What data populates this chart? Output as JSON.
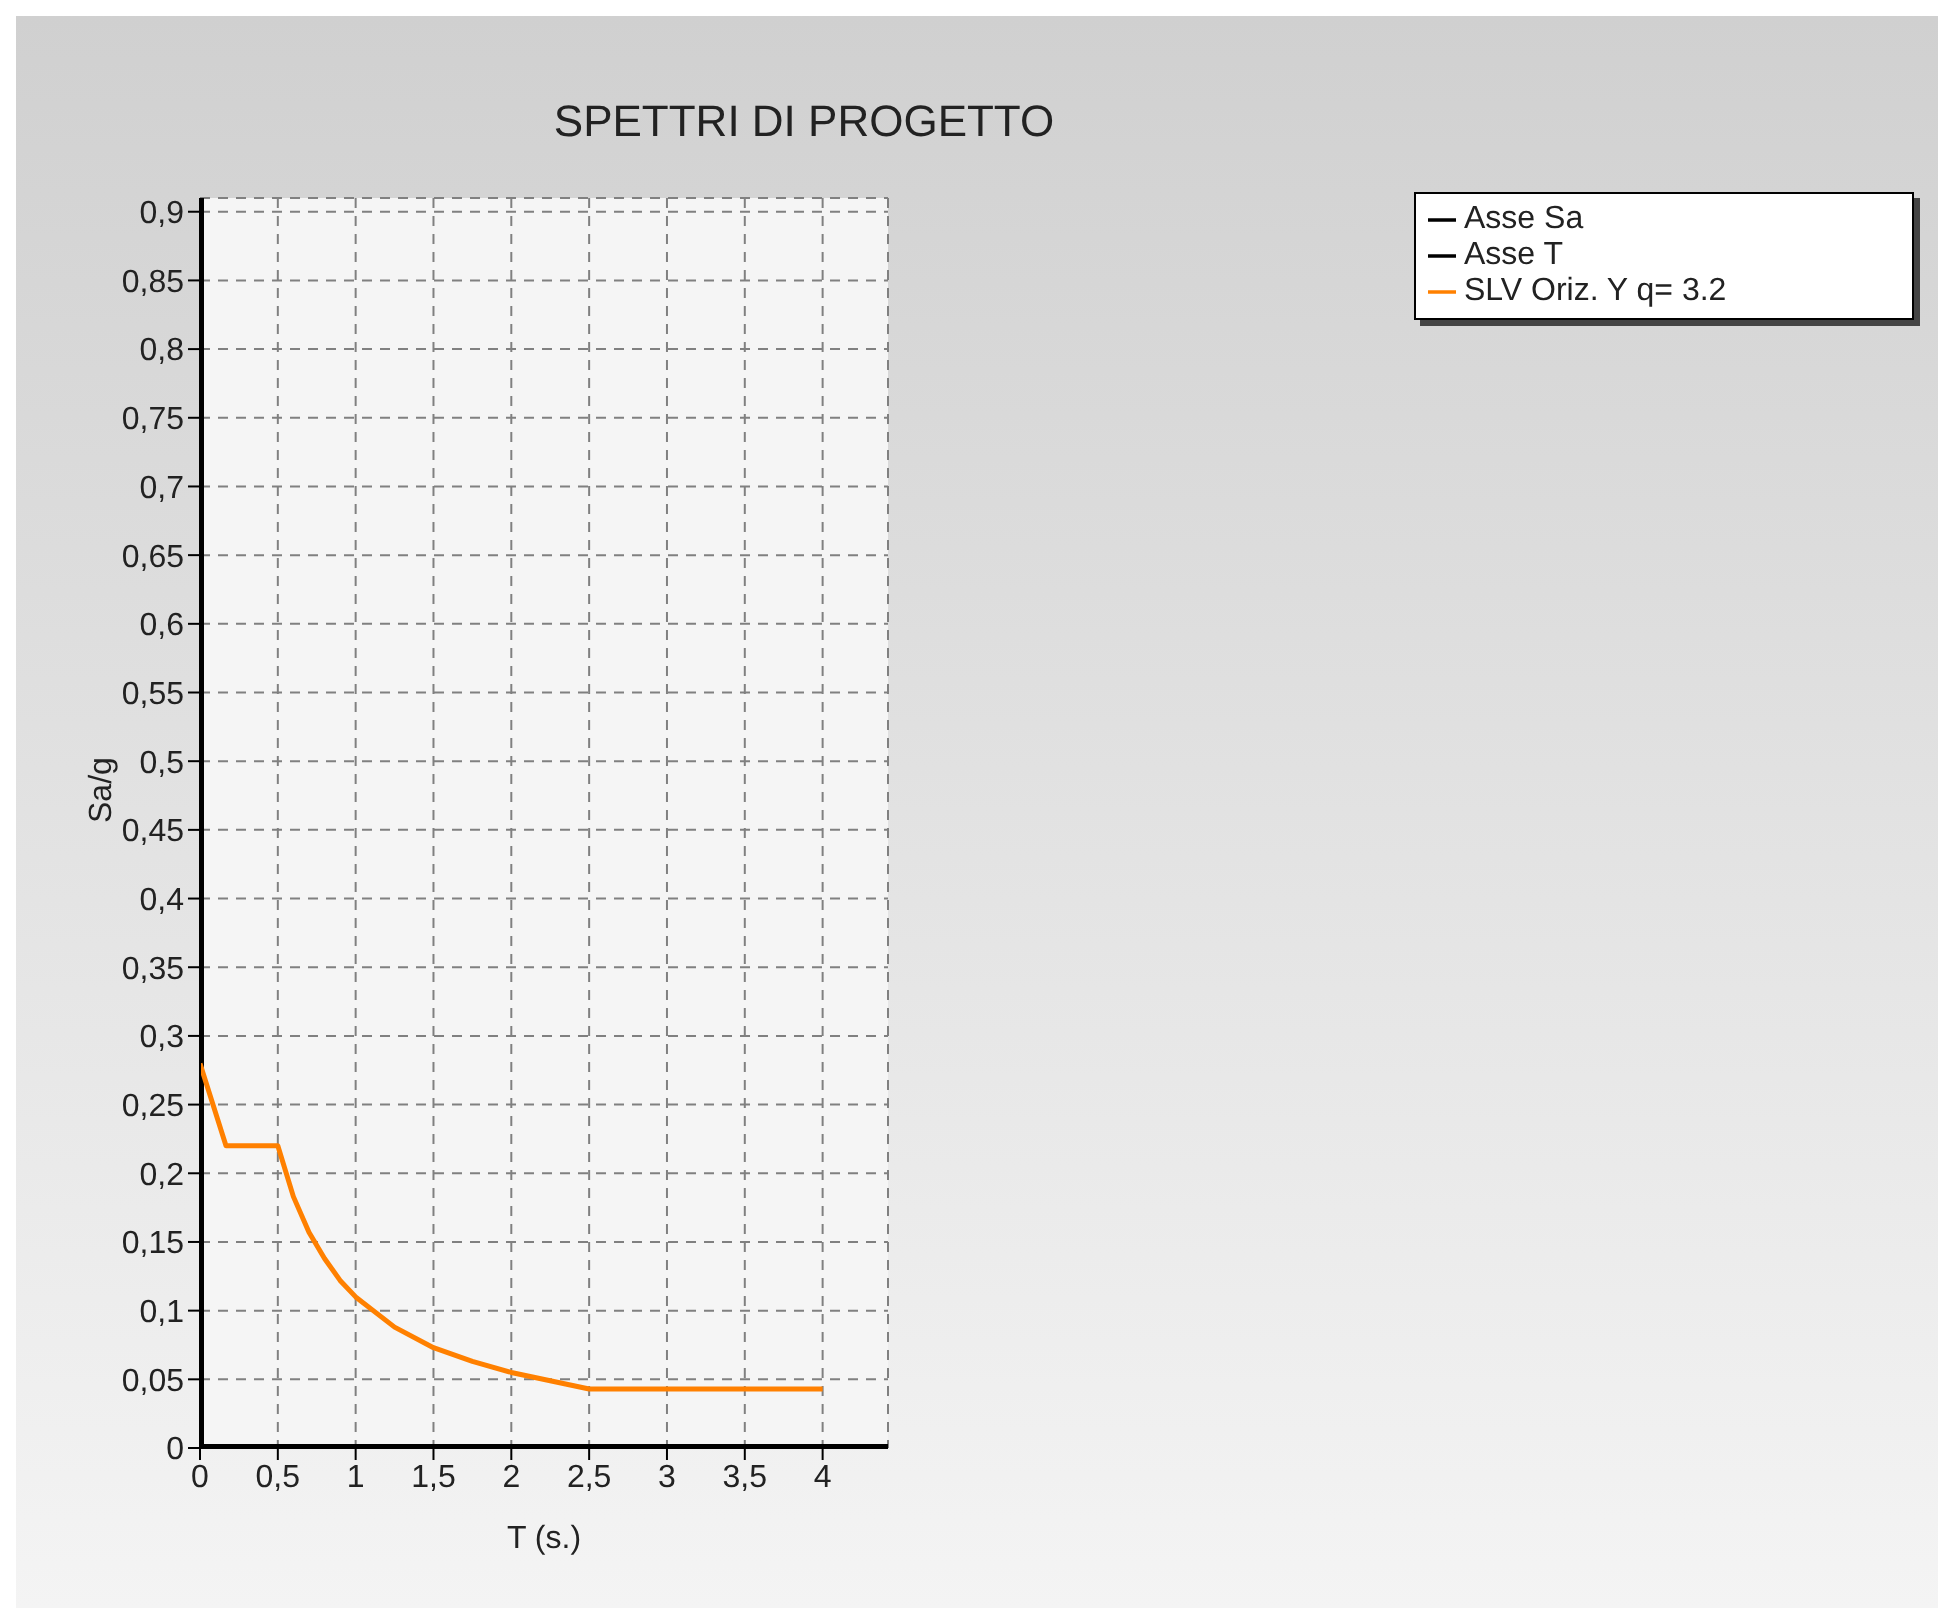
{
  "chart_data": {
    "type": "line",
    "title": "SPETTRI DI PROGETTO",
    "xlabel": "T (s.)",
    "ylabel": "Sa/g",
    "xlim": [
      0,
      4.42
    ],
    "ylim": [
      0,
      0.91
    ],
    "xticks": [
      0,
      {
        "value": 0.5,
        "label": "0,5"
      },
      1,
      {
        "value": 1.5,
        "label": "1,5"
      },
      2,
      {
        "value": 2.5,
        "label": "2,5"
      },
      3,
      {
        "value": 3.5,
        "label": "3,5"
      },
      4
    ],
    "yticks": [
      0,
      {
        "value": 0.05,
        "label": "0,05"
      },
      {
        "value": 0.1,
        "label": "0,1"
      },
      {
        "value": 0.15,
        "label": "0,15"
      },
      {
        "value": 0.2,
        "label": "0,2"
      },
      {
        "value": 0.25,
        "label": "0,25"
      },
      {
        "value": 0.3,
        "label": "0,3"
      },
      {
        "value": 0.35,
        "label": "0,35"
      },
      {
        "value": 0.4,
        "label": "0,4"
      },
      {
        "value": 0.45,
        "label": "0,45"
      },
      {
        "value": 0.5,
        "label": "0,5"
      },
      {
        "value": 0.55,
        "label": "0,55"
      },
      {
        "value": 0.6,
        "label": "0,6"
      },
      {
        "value": 0.65,
        "label": "0,65"
      },
      {
        "value": 0.7,
        "label": "0,7"
      },
      {
        "value": 0.75,
        "label": "0,75"
      },
      {
        "value": 0.8,
        "label": "0,8"
      },
      {
        "value": 0.85,
        "label": "0,85"
      },
      {
        "value": 0.9,
        "label": "0,9"
      }
    ],
    "grid": true,
    "legend": "top right",
    "marker": "none",
    "line_style": "solid",
    "series": [
      {
        "name": "Asse T",
        "color": "#000000",
        "x": [
          0,
          4.42
        ],
        "values": [
          0,
          0
        ]
      },
      {
        "name": "Asse Sa",
        "color": "#000000",
        "x": [
          0,
          0
        ],
        "values": [
          0,
          0.91
        ]
      },
      {
        "name": "SLV Oriz. Y q= 3.2",
        "color": "#ff8000",
        "x": [
          0,
          0.167,
          0.5,
          0.6,
          0.7,
          0.8,
          0.9,
          1,
          1.25,
          1.5,
          1.75,
          2,
          2.25,
          2.5,
          3,
          3.5,
          4
        ],
        "values": [
          0.28,
          0.22,
          0.22,
          0.183,
          0.157,
          0.138,
          0.122,
          0.11,
          0.088,
          0.073,
          0.063,
          0.055,
          0.049,
          0.043,
          0.043,
          0.043,
          0.043
        ]
      }
    ]
  }
}
